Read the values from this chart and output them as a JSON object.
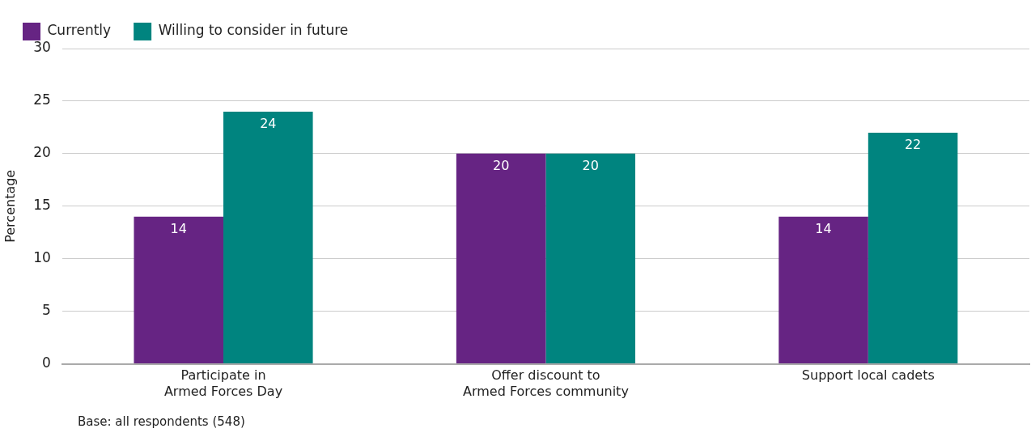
{
  "chart_data": {
    "type": "bar",
    "ylabel": "Percentage",
    "categories": [
      "Participate in\nArmed Forces Day",
      "Offer discount to\nArmed Forces community",
      "Support local cadets"
    ],
    "series": [
      {
        "name": "Currently",
        "color": "#662483",
        "values": [
          14,
          20,
          14
        ]
      },
      {
        "name": "Willing to consider in future",
        "color": "#00847f",
        "values": [
          24,
          20,
          22
        ]
      }
    ],
    "ylim": [
      0,
      30
    ],
    "yticks": [
      0,
      5,
      10,
      15,
      20,
      25,
      30
    ],
    "grid": "y",
    "legend": "top left",
    "data_labels": true,
    "annotations": [
      "Base: all respondents (548)"
    ]
  }
}
